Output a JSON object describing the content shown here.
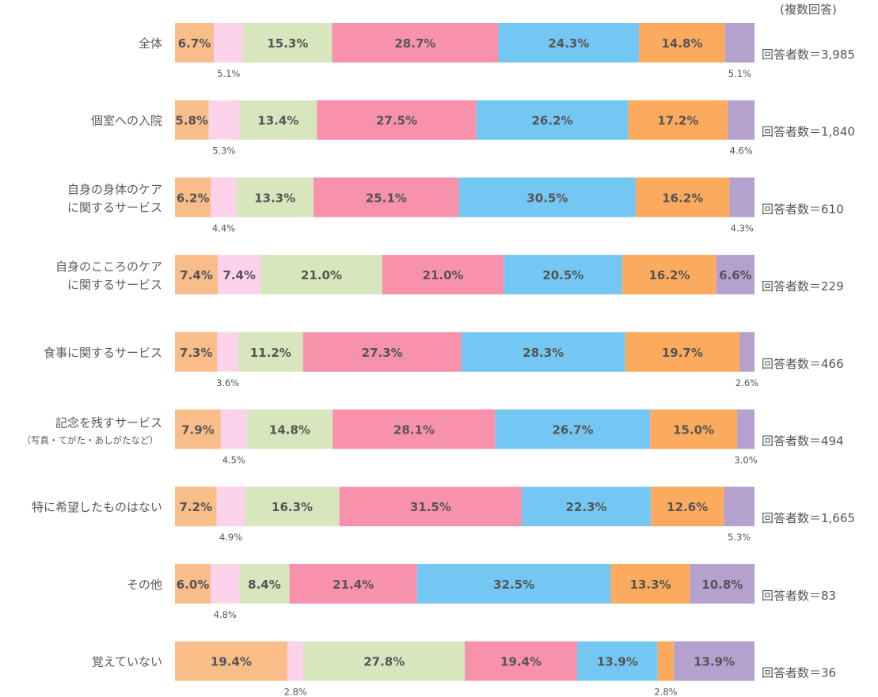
{
  "chart_data": {
    "type": "bar",
    "orientation": "horizontal",
    "stacked": true,
    "note": "(複数回答)",
    "xlim": [
      0,
      100
    ],
    "grid": false,
    "legend": "none",
    "colors": [
      "#f9bd8a",
      "#fdd3ec",
      "#d8e6bd",
      "#f891ac",
      "#74c7f2",
      "#fcaa5d",
      "#b5a1ce"
    ],
    "rows": [
      {
        "label_lines": [
          "全体"
        ],
        "respondents": "回答者数＝3,985",
        "values": [
          6.7,
          5.1,
          15.3,
          28.7,
          24.3,
          14.8,
          5.1
        ],
        "labels": [
          "6.7%",
          "5.1%",
          "15.3%",
          "28.7%",
          "24.3%",
          "14.8%",
          "5.1%"
        ]
      },
      {
        "label_lines": [
          "個室への入院"
        ],
        "respondents": "回答者数＝1,840",
        "values": [
          5.8,
          5.3,
          13.4,
          27.5,
          26.2,
          17.2,
          4.6
        ],
        "labels": [
          "5.8%",
          "5.3%",
          "13.4%",
          "27.5%",
          "26.2%",
          "17.2%",
          "4.6%"
        ]
      },
      {
        "label_lines": [
          "自身の身体のケア",
          "に関するサービス"
        ],
        "respondents": "回答者数＝610",
        "values": [
          6.2,
          4.4,
          13.3,
          25.1,
          30.5,
          16.2,
          4.3
        ],
        "labels": [
          "6.2%",
          "4.4%",
          "13.3%",
          "25.1%",
          "30.5%",
          "16.2%",
          "4.3%"
        ]
      },
      {
        "label_lines": [
          "自身のこころのケア",
          "に関するサービス"
        ],
        "respondents": "回答者数＝229",
        "values": [
          7.4,
          7.4,
          21.0,
          21.0,
          20.5,
          16.2,
          6.6
        ],
        "labels": [
          "7.4%",
          "7.4%",
          "21.0%",
          "21.0%",
          "20.5%",
          "16.2%",
          "6.6%"
        ]
      },
      {
        "label_lines": [
          "食事に関するサービス"
        ],
        "respondents": "回答者数＝466",
        "values": [
          7.3,
          3.6,
          11.2,
          27.3,
          28.3,
          19.7,
          2.6
        ],
        "labels": [
          "7.3%",
          "3.6%",
          "11.2%",
          "27.3%",
          "28.3%",
          "19.7%",
          "2.6%"
        ]
      },
      {
        "label_lines": [
          "記念を残すサービス"
        ],
        "label_sub": "（写真・てがた・あしがたなど）",
        "respondents": "回答者数＝494",
        "values": [
          7.9,
          4.5,
          14.8,
          28.1,
          26.7,
          15.0,
          3.0
        ],
        "labels": [
          "7.9%",
          "4.5%",
          "14.8%",
          "28.1%",
          "26.7%",
          "15.0%",
          "3.0%"
        ]
      },
      {
        "label_lines": [
          "特に希望したものはない"
        ],
        "respondents": "回答者数＝1,665",
        "values": [
          7.2,
          4.9,
          16.3,
          31.5,
          22.3,
          12.6,
          5.3
        ],
        "labels": [
          "7.2%",
          "4.9%",
          "16.3%",
          "31.5%",
          "22.3%",
          "12.6%",
          "5.3%"
        ]
      },
      {
        "label_lines": [
          "その他"
        ],
        "respondents": "回答者数＝83",
        "values": [
          6.0,
          4.8,
          8.4,
          21.4,
          32.5,
          13.3,
          10.8
        ],
        "labels": [
          "6.0%",
          "4.8%",
          "8.4%",
          "21.4%",
          "32.5%",
          "13.3%",
          "10.8%"
        ]
      },
      {
        "label_lines": [
          "覚えていない"
        ],
        "respondents": "回答者数＝36",
        "values": [
          19.4,
          2.8,
          27.8,
          19.4,
          13.9,
          2.8,
          13.9
        ],
        "labels": [
          "19.4%",
          "2.8%",
          "27.8%",
          "19.4%",
          "13.9%",
          "2.8%",
          "13.9%"
        ]
      }
    ]
  }
}
